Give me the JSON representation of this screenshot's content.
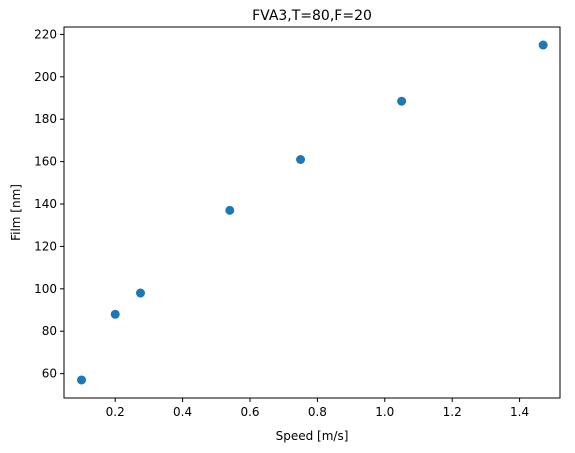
{
  "chart_data": {
    "type": "scatter",
    "title": "FVA3,T=80,F=20",
    "xlabel": "Speed [m/s]",
    "ylabel": "Film [nm]",
    "xlim": [
      0.048,
      1.52
    ],
    "ylim": [
      48.5,
      223.5
    ],
    "xticks": [
      0.2,
      0.4,
      0.6,
      0.8,
      1.0,
      1.2,
      1.4
    ],
    "xtick_labels": [
      "0.2",
      "0.4",
      "0.6",
      "0.8",
      "1.0",
      "1.2",
      "1.4"
    ],
    "yticks": [
      60,
      80,
      100,
      120,
      140,
      160,
      180,
      200,
      220
    ],
    "ytick_labels": [
      "60",
      "80",
      "100",
      "120",
      "140",
      "160",
      "180",
      "200",
      "220"
    ],
    "grid": false,
    "marker_color": "#1f77b4",
    "points": [
      {
        "x": 0.1,
        "y": 57
      },
      {
        "x": 0.2,
        "y": 88
      },
      {
        "x": 0.275,
        "y": 98
      },
      {
        "x": 0.54,
        "y": 137
      },
      {
        "x": 0.75,
        "y": 161
      },
      {
        "x": 1.05,
        "y": 188.5
      },
      {
        "x": 1.47,
        "y": 215
      }
    ]
  }
}
